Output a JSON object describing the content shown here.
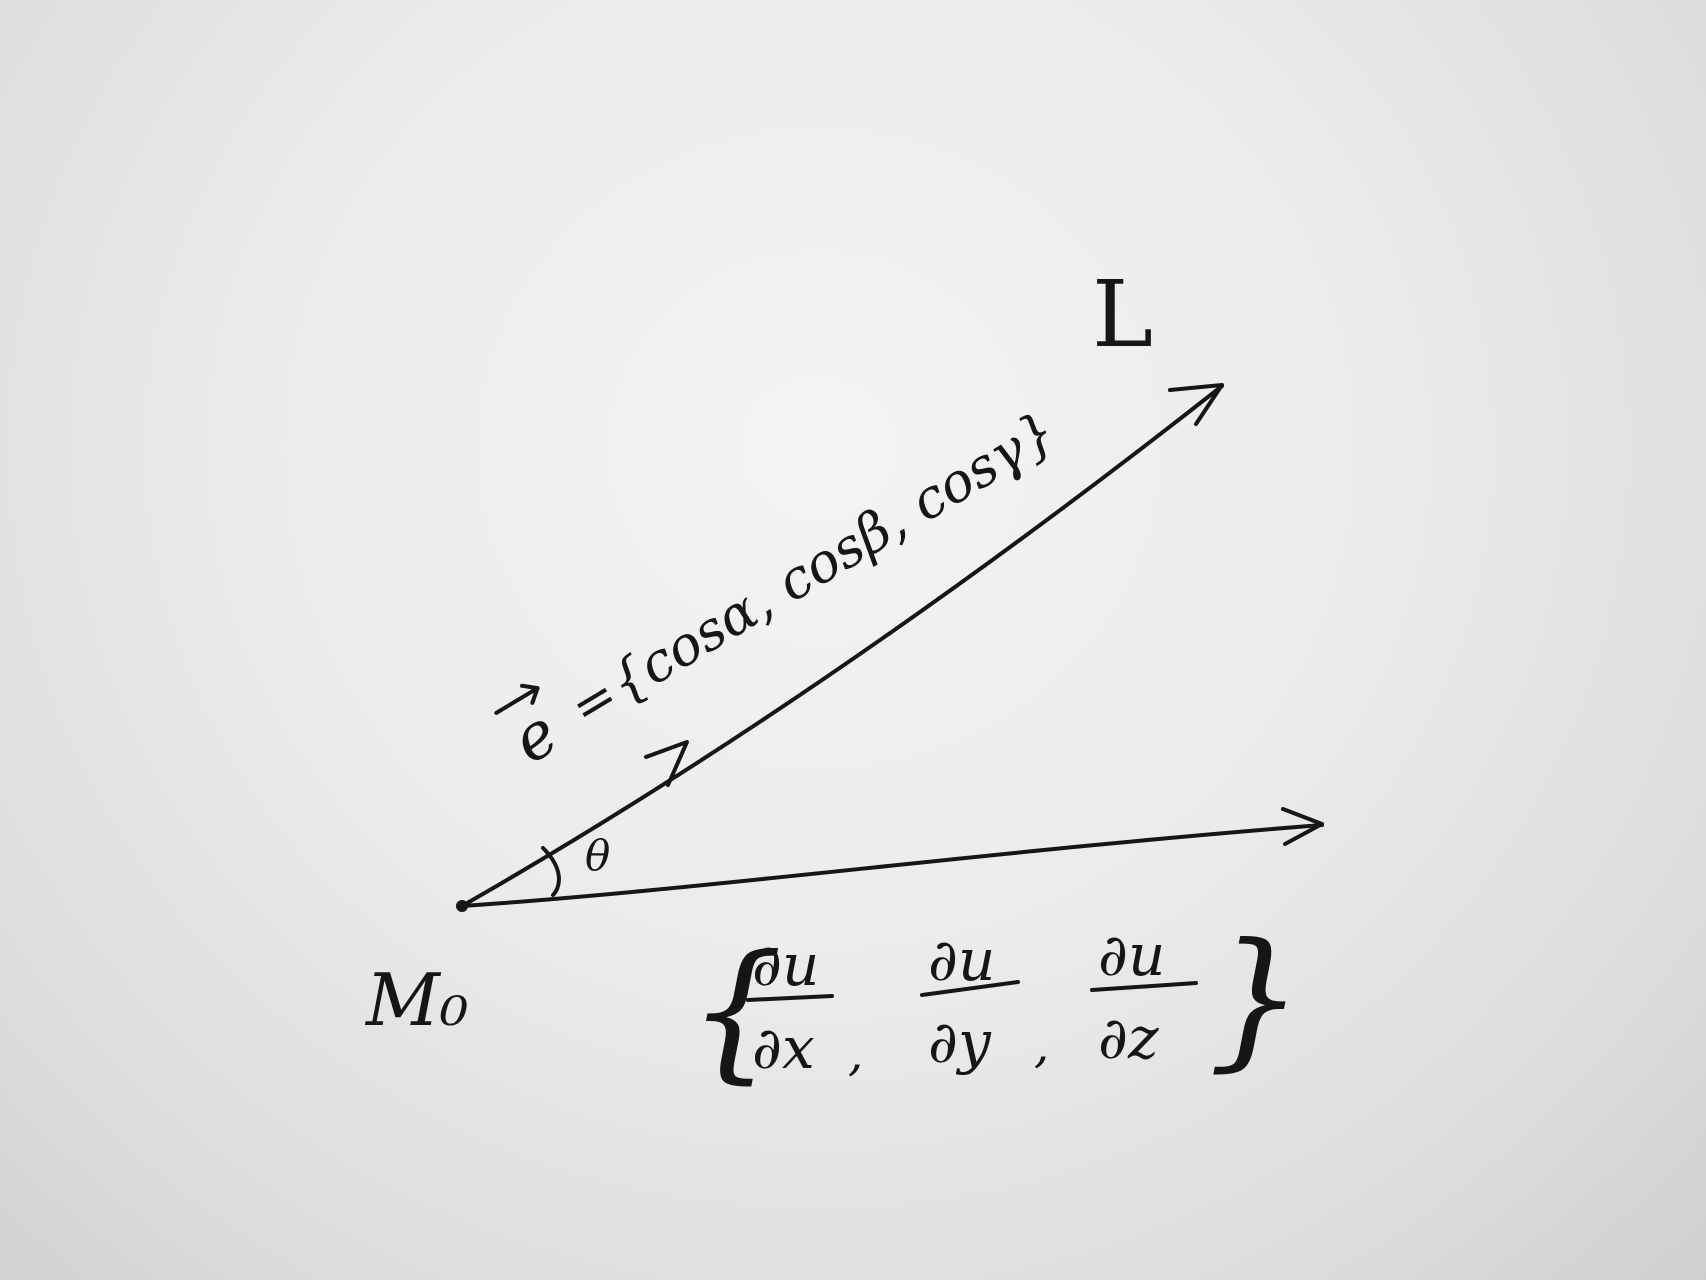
{
  "labels": {
    "line_name": "L",
    "point_name": "M₀",
    "angle_symbol": "θ",
    "unit_vector_symbol": "e",
    "equals": "=",
    "direction_cosines": "{cosα, cosβ, cosγ}",
    "gradient": {
      "open_brace": "{",
      "close_brace": "}",
      "components": [
        {
          "numerator": "∂u",
          "denominator": "∂x"
        },
        {
          "numerator": "∂u",
          "denominator": "∂y"
        },
        {
          "numerator": "∂u",
          "denominator": "∂z"
        }
      ],
      "separator": ","
    }
  },
  "colors": {
    "ink": "#161616",
    "paper": "#ecebea"
  }
}
